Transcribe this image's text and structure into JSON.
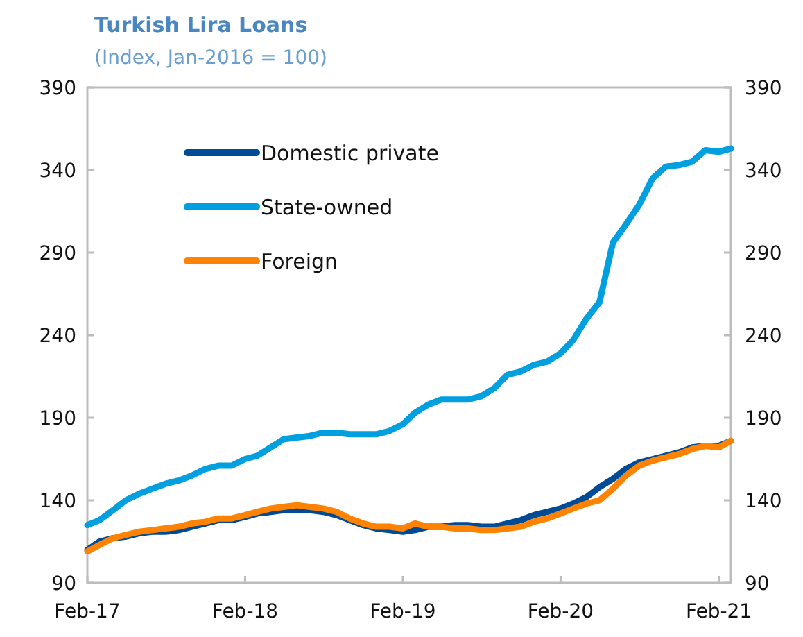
{
  "chart_data": {
    "type": "line",
    "title": "Turkish Lira Loans",
    "subtitle": "(Index, Jan-2016 = 100)",
    "x": [
      "2017-02",
      "2017-03",
      "2017-04",
      "2017-05",
      "2017-06",
      "2017-07",
      "2017-08",
      "2017-09",
      "2017-10",
      "2017-11",
      "2017-12",
      "2018-01",
      "2018-02",
      "2018-03",
      "2018-04",
      "2018-05",
      "2018-06",
      "2018-07",
      "2018-08",
      "2018-09",
      "2018-10",
      "2018-11",
      "2018-12",
      "2019-01",
      "2019-02",
      "2019-03",
      "2019-04",
      "2019-05",
      "2019-06",
      "2019-07",
      "2019-08",
      "2019-09",
      "2019-10",
      "2019-11",
      "2019-12",
      "2020-01",
      "2020-02",
      "2020-03",
      "2020-04",
      "2020-05",
      "2020-06",
      "2020-07",
      "2020-08",
      "2020-09",
      "2020-10",
      "2020-11",
      "2020-12",
      "2021-01",
      "2021-02",
      "2021-03"
    ],
    "series": [
      {
        "name": "Domestic private",
        "color": "#004b96",
        "values": [
          110,
          115,
          117,
          118,
          120,
          121,
          121,
          122,
          124,
          126,
          128,
          128,
          130,
          132,
          133,
          134,
          134,
          134,
          133,
          131,
          128,
          125,
          123,
          122,
          121,
          122,
          124,
          124,
          125,
          125,
          124,
          124,
          126,
          128,
          131,
          133,
          135,
          138,
          142,
          148,
          153,
          159,
          163,
          165,
          167,
          169,
          172,
          173,
          173,
          176
        ]
      },
      {
        "name": "State-owned",
        "color": "#00a0e0",
        "values": [
          125,
          128,
          134,
          140,
          144,
          147,
          150,
          152,
          155,
          159,
          161,
          161,
          165,
          167,
          172,
          177,
          178,
          179,
          181,
          181,
          180,
          180,
          180,
          182,
          186,
          193,
          198,
          201,
          201,
          201,
          203,
          208,
          216,
          218,
          222,
          224,
          229,
          237,
          250,
          260,
          296,
          307,
          319,
          335,
          342,
          343,
          345,
          352,
          351,
          353
        ]
      },
      {
        "name": "Foreign",
        "color": "#ff8200",
        "values": [
          109,
          113,
          117,
          119,
          121,
          122,
          123,
          124,
          126,
          127,
          129,
          129,
          131,
          133,
          135,
          136,
          137,
          136,
          135,
          133,
          129,
          126,
          124,
          124,
          123,
          126,
          124,
          124,
          123,
          123,
          122,
          122,
          123,
          124,
          127,
          129,
          132,
          135,
          138,
          140,
          147,
          155,
          161,
          164,
          166,
          168,
          171,
          173,
          172,
          176
        ]
      }
    ],
    "xlim": [
      "2017-02",
      "2021-03"
    ],
    "xticks": [
      {
        "value": "2017-02",
        "label": "Feb-17"
      },
      {
        "value": "2018-02",
        "label": "Feb-18"
      },
      {
        "value": "2019-02",
        "label": "Feb-19"
      },
      {
        "value": "2020-02",
        "label": "Feb-20"
      },
      {
        "value": "2021-02",
        "label": "Feb-21"
      }
    ],
    "ylim": [
      90,
      390
    ],
    "yticks": [
      90,
      140,
      190,
      240,
      290,
      340,
      390
    ],
    "y2lim": [
      90,
      390
    ],
    "y2ticks": [
      90,
      140,
      190,
      240,
      290,
      340,
      390
    ],
    "legend": "top left",
    "grid": false,
    "line_style": "solid",
    "marker": "none"
  }
}
